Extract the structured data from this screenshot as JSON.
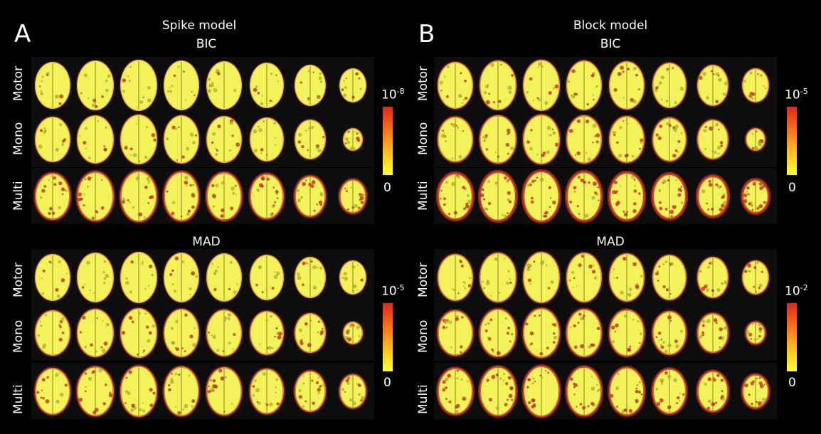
{
  "panels": [
    {
      "letter": "A",
      "title": "Spike model",
      "groups": [
        {
          "metric": "BIC",
          "rows": [
            "Motor",
            "Mono",
            "Multi"
          ],
          "scale": {
            "base": "10",
            "exponent": "-8",
            "min": "0"
          }
        },
        {
          "metric": "MAD",
          "rows": [
            "Motor",
            "Mono",
            "Multi"
          ],
          "scale": {
            "base": "10",
            "exponent": "-5",
            "min": "0"
          }
        }
      ]
    },
    {
      "letter": "B",
      "title": "Block model",
      "groups": [
        {
          "metric": "BIC",
          "rows": [
            "Motor",
            "Mono",
            "Multi"
          ],
          "scale": {
            "base": "10",
            "exponent": "-5",
            "min": "0"
          }
        },
        {
          "metric": "MAD",
          "rows": [
            "Motor",
            "Mono",
            "Multi"
          ],
          "scale": {
            "base": "10",
            "exponent": "-2",
            "min": "0"
          }
        }
      ]
    }
  ],
  "colors": {
    "background": "#000000",
    "brain_fill": "#f2f25a",
    "activation": "#b8281c",
    "scale_top": "#e0261a",
    "scale_bottom": "#ffff3a"
  }
}
